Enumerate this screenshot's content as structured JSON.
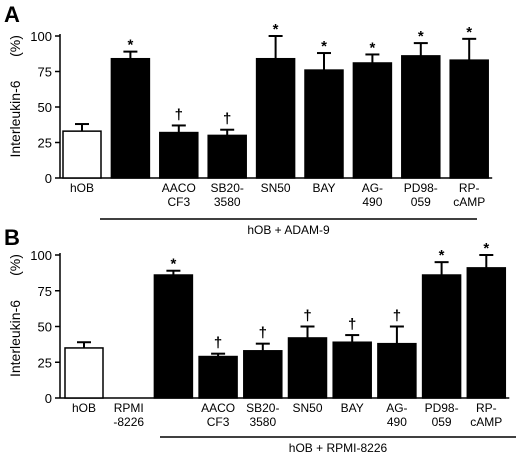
{
  "chart_data": [
    {
      "type": "bar",
      "panel": "A",
      "ylabel": "Interleukin-6",
      "ylabel_unit": "(%)",
      "ylim": [
        0,
        100
      ],
      "yticks": [
        "0",
        "25",
        "50",
        "75",
        "100"
      ],
      "categories": [
        [
          "hOB"
        ],
        [
          ""
        ],
        [
          "AACO",
          "CF3"
        ],
        [
          "SB20-",
          "3580"
        ],
        [
          "SN50"
        ],
        [
          "BAY"
        ],
        [
          "AG-",
          "490"
        ],
        [
          "PD98-",
          "059"
        ],
        [
          "RP-",
          "cAMP"
        ]
      ],
      "values": [
        33,
        84,
        32,
        30,
        84,
        76,
        81,
        86,
        83
      ],
      "errors": [
        5,
        5,
        5,
        4,
        16,
        12,
        6,
        9,
        15
      ],
      "fills": [
        "white",
        "black",
        "black",
        "black",
        "black",
        "black",
        "black",
        "black",
        "black"
      ],
      "markers": [
        "",
        "*",
        "†",
        "†",
        "*",
        "*",
        "*",
        "*",
        "*"
      ],
      "group_label": "hOB + ADAM-9",
      "group_span": [
        1,
        8
      ]
    },
    {
      "type": "bar",
      "panel": "B",
      "ylabel": "Interleukin-6",
      "ylabel_unit": "(%)",
      "ylim": [
        0,
        100
      ],
      "yticks": [
        "0",
        "25",
        "50",
        "75",
        "100"
      ],
      "categories": [
        [
          "hOB"
        ],
        [
          "RPMI",
          "-8226"
        ],
        [
          ""
        ],
        [
          "AACO",
          "CF3"
        ],
        [
          "SB20-",
          "3580"
        ],
        [
          "SN50"
        ],
        [
          "BAY"
        ],
        [
          "AG-",
          "490"
        ],
        [
          "PD98-",
          "059"
        ],
        [
          "RP-",
          "cAMP"
        ]
      ],
      "values": [
        35,
        0,
        86,
        29,
        33,
        42,
        39,
        38,
        86,
        91
      ],
      "errors": [
        4,
        0,
        3,
        2,
        5,
        8,
        5,
        12,
        9,
        9
      ],
      "fills": [
        "white",
        "white",
        "black",
        "black",
        "black",
        "black",
        "black",
        "black",
        "black",
        "black"
      ],
      "markers": [
        "",
        "",
        "*",
        "†",
        "†",
        "†",
        "†",
        "†",
        "*",
        "*"
      ],
      "group_label": "hOB + RPMI-8226",
      "group_span": [
        2,
        9
      ]
    }
  ]
}
